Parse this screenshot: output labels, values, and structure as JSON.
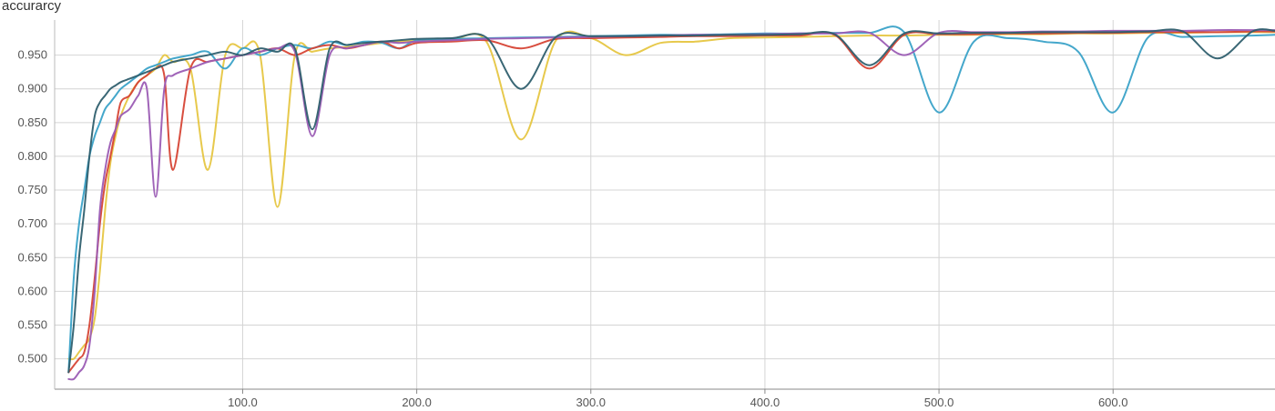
{
  "chart_data": {
    "type": "line",
    "title": "accurarcy",
    "xlabel": "",
    "ylabel": "",
    "xlim": [
      -8,
      693
    ],
    "ylim": [
      0.455,
      1.002
    ],
    "grid": true,
    "legend": "none",
    "x_ticks": [
      100,
      200,
      300,
      400,
      500,
      600
    ],
    "x_tick_labels": [
      "100.0",
      "200.0",
      "300.0",
      "400.0",
      "500.0",
      "600.0"
    ],
    "y_ticks": [
      0.5,
      0.55,
      0.6,
      0.65,
      0.7,
      0.75,
      0.8,
      0.85,
      0.9,
      0.95
    ],
    "y_tick_labels": [
      "0.500",
      "0.550",
      "0.600",
      "0.650",
      "0.700",
      "0.750",
      "0.800",
      "0.850",
      "0.900",
      "0.950"
    ],
    "x": [
      0,
      3,
      6,
      9,
      12,
      15,
      18,
      21,
      24,
      27,
      30,
      35,
      40,
      45,
      50,
      55,
      60,
      70,
      80,
      90,
      100,
      110,
      120,
      130,
      140,
      150,
      160,
      170,
      180,
      190,
      200,
      220,
      240,
      260,
      280,
      300,
      320,
      340,
      360,
      380,
      400,
      420,
      440,
      460,
      480,
      500,
      520,
      540,
      560,
      580,
      600,
      620,
      640,
      660,
      680,
      693
    ],
    "series": [
      {
        "color": "#E6C642",
        "values": [
          0.5,
          0.5,
          0.51,
          0.52,
          0.53,
          0.56,
          0.63,
          0.72,
          0.79,
          0.83,
          0.86,
          0.89,
          0.91,
          0.92,
          0.93,
          0.95,
          0.94,
          0.93,
          0.78,
          0.95,
          0.96,
          0.95,
          0.725,
          0.95,
          0.955,
          0.96,
          0.962,
          0.965,
          0.968,
          0.97,
          0.972,
          0.973,
          0.97,
          0.825,
          0.972,
          0.975,
          0.95,
          0.968,
          0.97,
          0.975,
          0.976,
          0.977,
          0.978,
          0.979,
          0.979,
          0.98,
          0.98,
          0.981,
          0.981,
          0.982,
          0.982,
          0.983,
          0.983,
          0.984,
          0.984,
          0.984
        ]
      },
      {
        "color": "#3AA2C8",
        "values": [
          0.48,
          0.62,
          0.7,
          0.75,
          0.8,
          0.83,
          0.85,
          0.87,
          0.88,
          0.89,
          0.9,
          0.91,
          0.92,
          0.93,
          0.935,
          0.94,
          0.945,
          0.95,
          0.955,
          0.93,
          0.96,
          0.95,
          0.96,
          0.965,
          0.96,
          0.97,
          0.965,
          0.97,
          0.968,
          0.96,
          0.972,
          0.974,
          0.975,
          0.976,
          0.977,
          0.978,
          0.979,
          0.98,
          0.98,
          0.981,
          0.982,
          0.982,
          0.983,
          0.983,
          0.984,
          0.865,
          0.97,
          0.975,
          0.97,
          0.955,
          0.865,
          0.976,
          0.977,
          0.978,
          0.979,
          0.98
        ]
      },
      {
        "color": "#D64535",
        "values": [
          0.48,
          0.49,
          0.5,
          0.51,
          0.55,
          0.62,
          0.7,
          0.76,
          0.8,
          0.84,
          0.88,
          0.89,
          0.91,
          0.92,
          0.93,
          0.92,
          0.78,
          0.93,
          0.94,
          0.945,
          0.95,
          0.955,
          0.96,
          0.95,
          0.96,
          0.965,
          0.96,
          0.965,
          0.97,
          0.96,
          0.968,
          0.97,
          0.972,
          0.96,
          0.974,
          0.975,
          0.976,
          0.977,
          0.978,
          0.978,
          0.979,
          0.979,
          0.98,
          0.93,
          0.98,
          0.981,
          0.981,
          0.982,
          0.982,
          0.983,
          0.983,
          0.984,
          0.984,
          0.984,
          0.985,
          0.985
        ]
      },
      {
        "color": "#9B5CB4",
        "values": [
          0.47,
          0.47,
          0.48,
          0.49,
          0.52,
          0.6,
          0.72,
          0.78,
          0.82,
          0.84,
          0.86,
          0.87,
          0.89,
          0.9,
          0.74,
          0.9,
          0.92,
          0.93,
          0.94,
          0.945,
          0.95,
          0.955,
          0.96,
          0.955,
          0.83,
          0.95,
          0.96,
          0.965,
          0.97,
          0.968,
          0.97,
          0.972,
          0.974,
          0.975,
          0.976,
          0.977,
          0.978,
          0.979,
          0.98,
          0.98,
          0.981,
          0.982,
          0.982,
          0.983,
          0.95,
          0.983,
          0.984,
          0.984,
          0.985,
          0.985,
          0.986,
          0.986,
          0.986,
          0.987,
          0.987,
          0.987
        ]
      },
      {
        "color": "#2F5F6E",
        "values": [
          0.48,
          0.55,
          0.65,
          0.72,
          0.8,
          0.86,
          0.88,
          0.89,
          0.9,
          0.905,
          0.91,
          0.915,
          0.92,
          0.925,
          0.93,
          0.935,
          0.94,
          0.945,
          0.95,
          0.955,
          0.95,
          0.96,
          0.955,
          0.96,
          0.84,
          0.96,
          0.965,
          0.968,
          0.97,
          0.972,
          0.974,
          0.975,
          0.976,
          0.9,
          0.977,
          0.978,
          0.978,
          0.979,
          0.979,
          0.98,
          0.98,
          0.981,
          0.981,
          0.935,
          0.982,
          0.982,
          0.983,
          0.983,
          0.984,
          0.984,
          0.984,
          0.985,
          0.985,
          0.945,
          0.985,
          0.986
        ]
      }
    ]
  }
}
